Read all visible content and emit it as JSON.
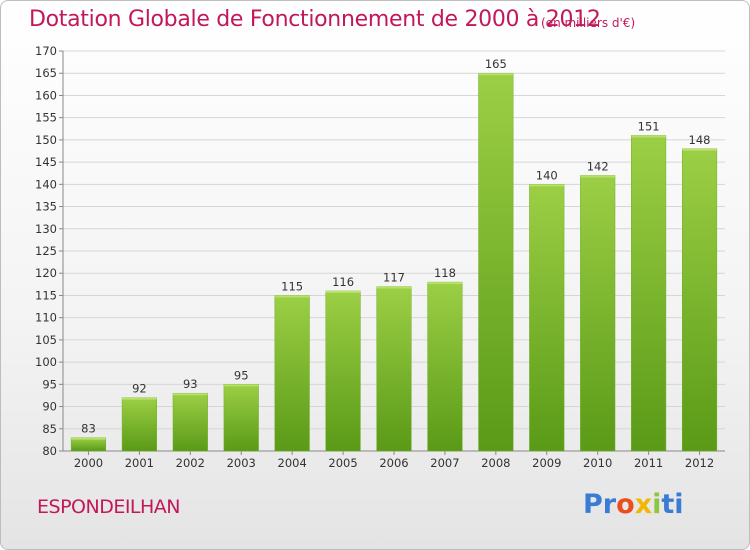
{
  "title": "Dotation Globale de Fonctionnement de 2000 à 2012",
  "subtitle": "(en milliers d'€)",
  "commune": "ESPONDEILHAN",
  "logo": {
    "letters": [
      "P",
      "r",
      "o",
      "x",
      "i",
      "t",
      "i"
    ],
    "colors": [
      "#3a7bd5",
      "#3a7bd5",
      "#e94e1b",
      "#f2b705",
      "#8dc63f",
      "#3a7bd5",
      "#3a7bd5"
    ]
  },
  "colors": {
    "accent": "#c2185b",
    "bar_top": "#9ccf45",
    "bar_bottom": "#5a9a17"
  },
  "chart_data": {
    "type": "bar",
    "title": "Dotation Globale de Fonctionnement de 2000 à 2012",
    "subtitle": "(en milliers d'€)",
    "categories": [
      "2000",
      "2001",
      "2002",
      "2003",
      "2004",
      "2005",
      "2006",
      "2007",
      "2008",
      "2009",
      "2010",
      "2011",
      "2012"
    ],
    "values": [
      83,
      92,
      93,
      95,
      115,
      116,
      117,
      118,
      165,
      140,
      142,
      151,
      148
    ],
    "ylim": [
      80,
      170
    ],
    "yticks": [
      80,
      85,
      90,
      95,
      100,
      105,
      110,
      115,
      120,
      125,
      130,
      135,
      140,
      145,
      150,
      155,
      160,
      165,
      170
    ],
    "xlabel": "",
    "ylabel": "",
    "grid": true,
    "legend": false
  }
}
